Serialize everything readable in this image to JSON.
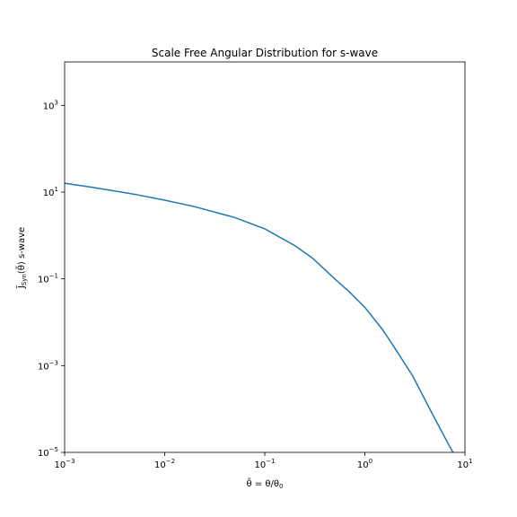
{
  "chart_data": {
    "type": "line",
    "title": "Scale Free Angular Distribution for s-wave",
    "xlabel": {
      "main": "θ̃ = θ/θ",
      "sub": "0"
    },
    "ylabel": {
      "prefix": "J̃",
      "sub": "Syn",
      "suffix": "(θ̃) s-wave"
    },
    "x_scale": "log",
    "y_scale": "log",
    "xlim": [
      0.001,
      10
    ],
    "ylim": [
      1e-05,
      10000
    ],
    "x_ticks": [
      {
        "value": 0.001,
        "base": "10",
        "exp": "−3"
      },
      {
        "value": 0.01,
        "base": "10",
        "exp": "−2"
      },
      {
        "value": 0.1,
        "base": "10",
        "exp": "−1"
      },
      {
        "value": 1,
        "base": "10",
        "exp": "0"
      },
      {
        "value": 10,
        "base": "10",
        "exp": "1"
      }
    ],
    "y_ticks": [
      {
        "value": 1e-05,
        "base": "10",
        "exp": "−5"
      },
      {
        "value": 0.001,
        "base": "10",
        "exp": "−3"
      },
      {
        "value": 0.1,
        "base": "10",
        "exp": "−1"
      },
      {
        "value": 10,
        "base": "10",
        "exp": "1"
      },
      {
        "value": 1000,
        "base": "10",
        "exp": "3"
      }
    ],
    "grid": false,
    "line_color": "#1f77b4",
    "series": [
      {
        "x": [
          0.001,
          0.002,
          0.005,
          0.01,
          0.02,
          0.05,
          0.1,
          0.2,
          0.3,
          0.5,
          0.7,
          1.0,
          1.5,
          2.0,
          3.0,
          5.0,
          7.0,
          7.6
        ],
        "y": [
          16,
          12.6,
          8.9,
          6.5,
          4.6,
          2.6,
          1.42,
          0.58,
          0.3,
          0.1,
          0.05,
          0.022,
          0.0068,
          0.0025,
          0.00058,
          6e-05,
          1.4e-05,
          1e-05
        ]
      }
    ]
  }
}
